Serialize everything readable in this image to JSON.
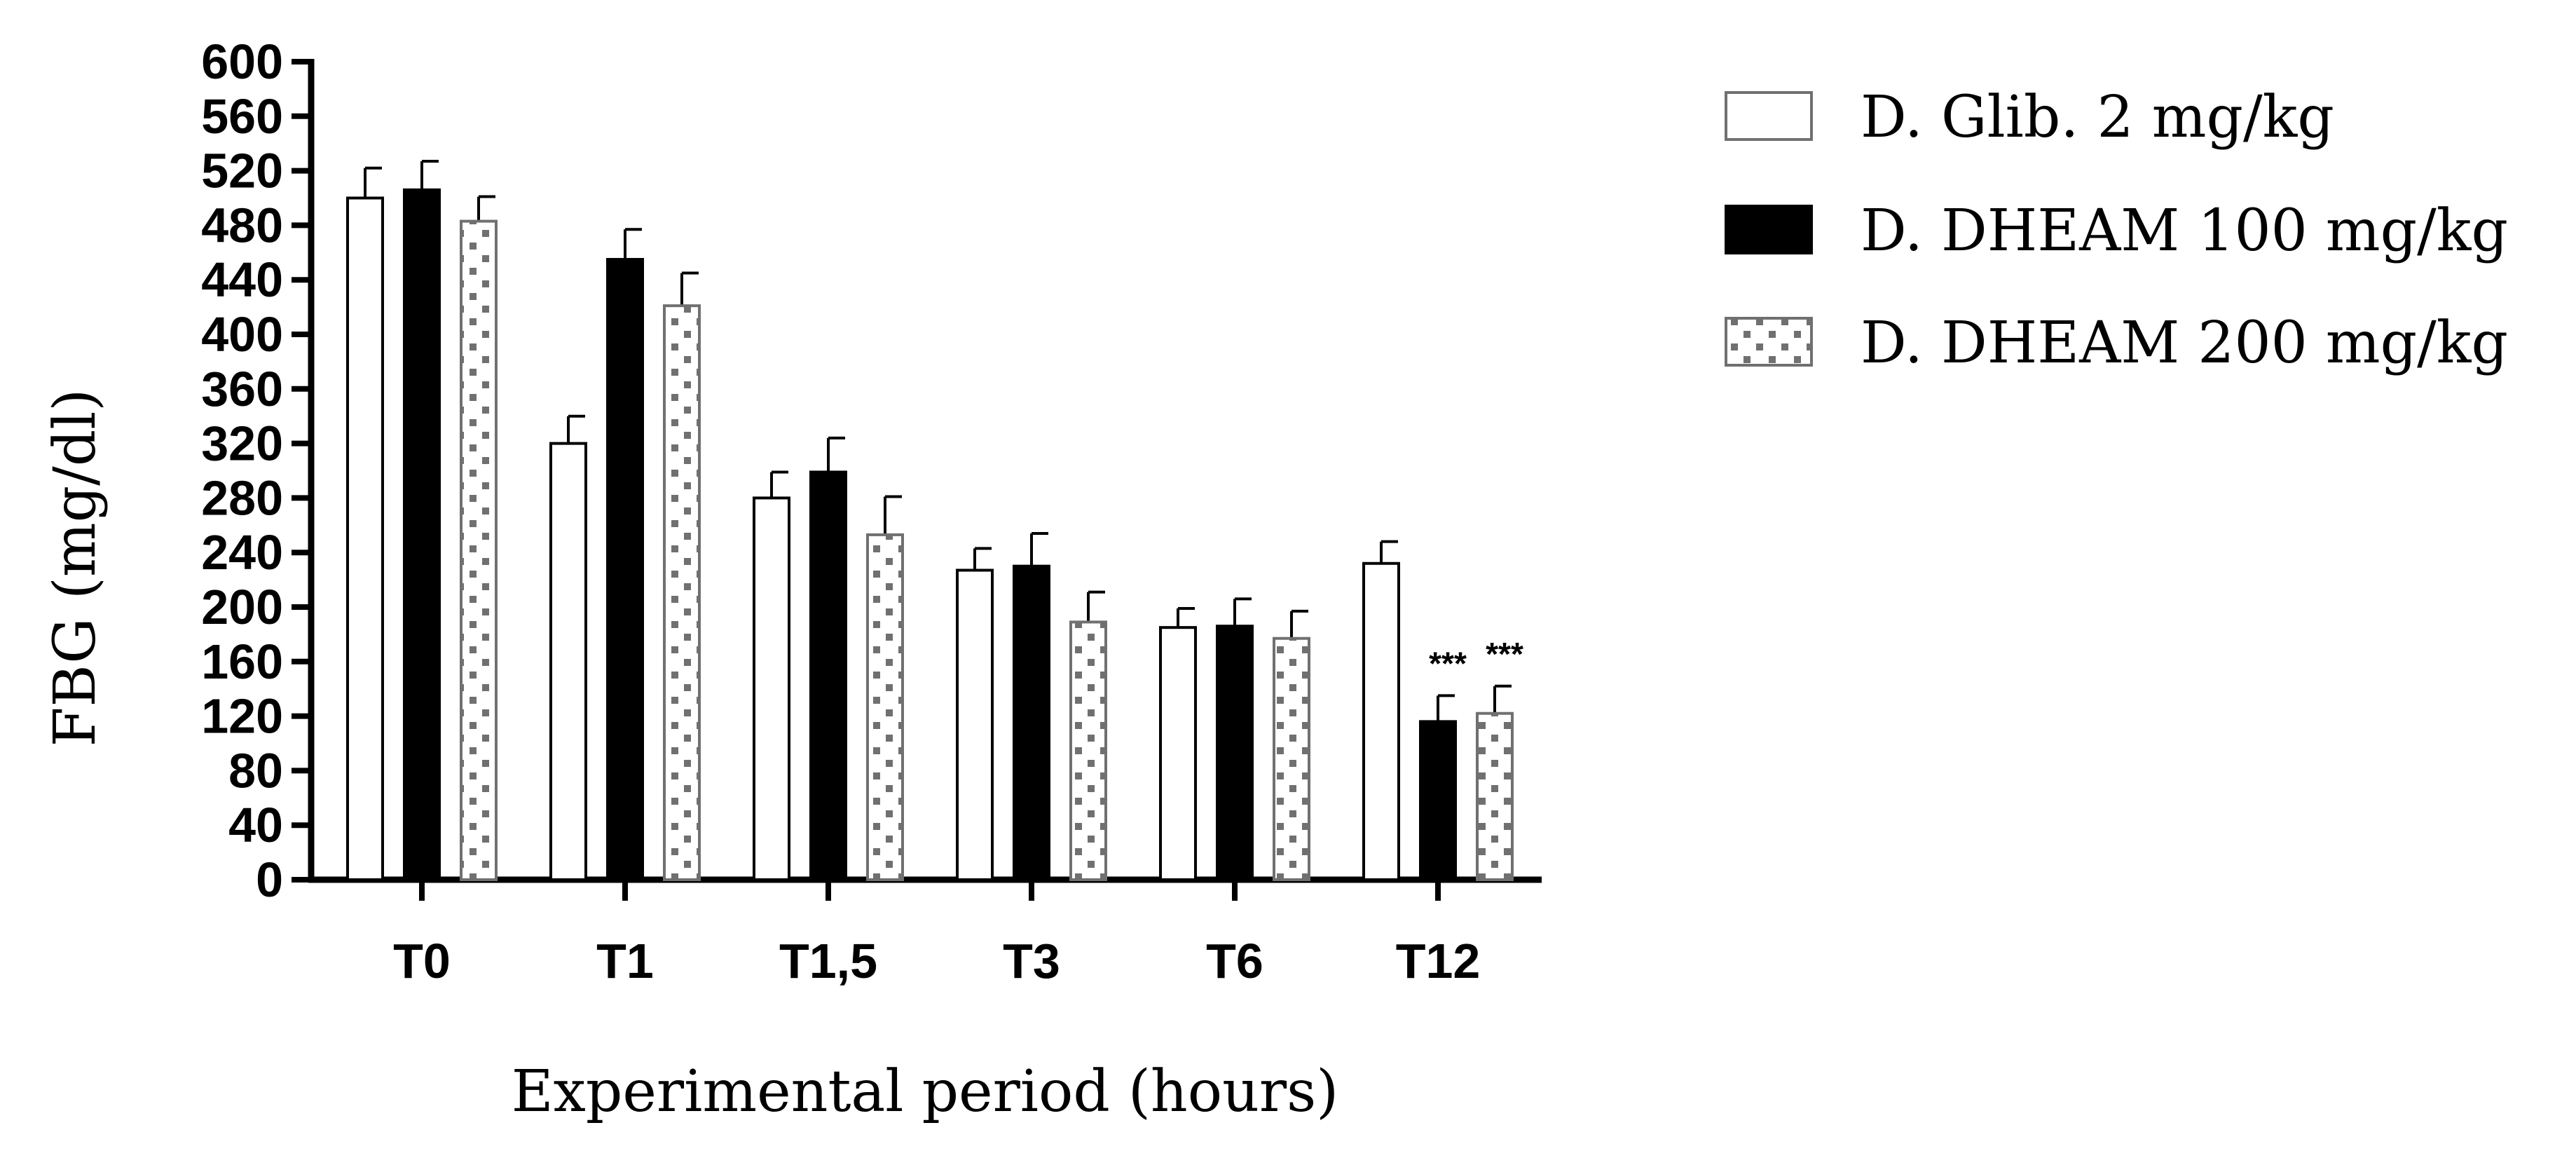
{
  "chart_data": {
    "type": "bar",
    "title": "",
    "xlabel": "Experimental period (hours)",
    "ylabel": "FBG (mg/dl)",
    "ylim": [
      0,
      600
    ],
    "yticks": [
      "0",
      "40",
      "80",
      "120",
      "160",
      "200",
      "240",
      "280",
      "320",
      "360",
      "400",
      "440",
      "480",
      "520",
      "560",
      "600"
    ],
    "categories": [
      "T0",
      "T1",
      "T1,5",
      "T3",
      "T6",
      "T12"
    ],
    "series": [
      {
        "name": "D. Glib. 2 mg/kg",
        "style": "white",
        "values": [
          500,
          320,
          280,
          227,
          185,
          232
        ],
        "errors": [
          22,
          20,
          19,
          16,
          14,
          16
        ],
        "annotations": [
          "",
          "",
          "",
          "",
          "",
          ""
        ]
      },
      {
        "name": "D. DHEAM 100 mg/kg",
        "style": "black",
        "values": [
          506,
          455,
          299,
          230,
          186,
          116
        ],
        "errors": [
          21,
          22,
          25,
          24,
          20,
          19
        ],
        "annotations": [
          "",
          "",
          "",
          "",
          "",
          "***"
        ]
      },
      {
        "name": "D. DHEAM 200 mg/kg",
        "style": "dotted",
        "values": [
          483,
          421,
          253,
          189,
          177,
          122
        ],
        "errors": [
          18,
          24,
          28,
          22,
          20,
          20
        ],
        "annotations": [
          "",
          "",
          "",
          "",
          "",
          "***"
        ]
      }
    ],
    "legend_position": "top-right",
    "grid": false
  },
  "colors": {
    "axis": "#000000",
    "bar_black": "#000000",
    "bar_white": "#ffffff",
    "dot": "#707070"
  }
}
